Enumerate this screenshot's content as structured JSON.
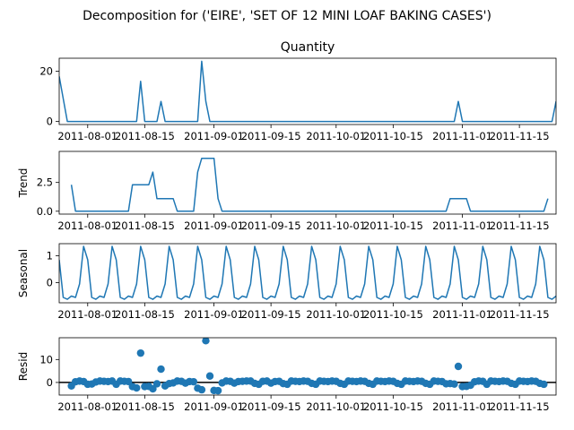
{
  "figure": {
    "suptitle": "Decomposition for ('EIRE', 'SET OF 12 MINI LOAF BAKING CASES')"
  },
  "colors": {
    "line": "#1f77b4",
    "axis": "#000000",
    "zero_line": "#000000"
  },
  "chart_data": [
    {
      "type": "line",
      "title": "Quantity",
      "ylabel": "",
      "ylim": [
        -1.2,
        25.2
      ],
      "yticks": [
        0,
        20
      ],
      "ytick_labels": [
        "0",
        "20"
      ],
      "xlim": [
        "2011-07-25",
        "2011-11-24"
      ],
      "xticks": [
        "2011-08-01",
        "2011-08-15",
        "2011-09-01",
        "2011-09-15",
        "2011-10-01",
        "2011-10-15",
        "2011-11-01",
        "2011-11-15"
      ],
      "xtick_labels": [
        "2011-08-01",
        "2011-08-15",
        "2011-09-01",
        "2011-09-15",
        "2011-10-01",
        "2011-10-15",
        "2011-11-01",
        "2011-11-15"
      ],
      "series": [
        {
          "points": [
            [
              "2011-07-25",
              18
            ],
            [
              "2011-07-27",
              0
            ],
            [
              "2011-08-13",
              0
            ],
            [
              "2011-08-14",
              16
            ],
            [
              "2011-08-15",
              0
            ],
            [
              "2011-08-18",
              0
            ],
            [
              "2011-08-19",
              8
            ],
            [
              "2011-08-20",
              0
            ],
            [
              "2011-08-28",
              0
            ],
            [
              "2011-08-29",
              24
            ],
            [
              "2011-08-30",
              8
            ],
            [
              "2011-08-31",
              0
            ],
            [
              "2011-10-30",
              0
            ],
            [
              "2011-10-31",
              8
            ],
            [
              "2011-11-01",
              0
            ],
            [
              "2011-11-23",
              0
            ],
            [
              "2011-11-24",
              8
            ]
          ]
        }
      ]
    },
    {
      "type": "line",
      "title": "",
      "ylabel": "Trend",
      "ylim": [
        -0.25,
        5.2
      ],
      "yticks": [
        0,
        2.5
      ],
      "ytick_labels": [
        "0.0",
        "2.5"
      ],
      "xlim": [
        "2011-07-25",
        "2011-11-24"
      ],
      "xticks": [
        "2011-08-01",
        "2011-08-15",
        "2011-09-01",
        "2011-09-15",
        "2011-10-01",
        "2011-10-15",
        "2011-11-01",
        "2011-11-15"
      ],
      "xtick_labels": [
        "2011-08-01",
        "2011-08-15",
        "2011-09-01",
        "2011-09-15",
        "2011-10-01",
        "2011-10-15",
        "2011-11-01",
        "2011-11-15"
      ],
      "series": [
        {
          "points": [
            [
              "2011-07-28",
              2.3
            ],
            [
              "2011-07-29",
              0
            ],
            [
              "2011-08-11",
              0
            ],
            [
              "2011-08-12",
              2.3
            ],
            [
              "2011-08-16",
              2.3
            ],
            [
              "2011-08-17",
              3.4
            ],
            [
              "2011-08-18",
              1.1
            ],
            [
              "2011-08-22",
              1.1
            ],
            [
              "2011-08-23",
              0
            ],
            [
              "2011-08-27",
              0
            ],
            [
              "2011-08-28",
              3.4
            ],
            [
              "2011-08-29",
              4.6
            ],
            [
              "2011-09-01",
              4.6
            ],
            [
              "2011-09-02",
              1.1
            ],
            [
              "2011-09-03",
              0
            ],
            [
              "2011-10-28",
              0
            ],
            [
              "2011-10-29",
              1.1
            ],
            [
              "2011-11-02",
              1.1
            ],
            [
              "2011-11-03",
              0
            ],
            [
              "2011-11-21",
              0
            ],
            [
              "2011-11-22",
              1.1
            ]
          ]
        }
      ]
    },
    {
      "type": "line",
      "title": "",
      "ylabel": "Seasonal",
      "ylim": [
        -0.75,
        1.45
      ],
      "yticks": [
        0,
        1
      ],
      "ytick_labels": [
        "0",
        "1"
      ],
      "xlim": [
        "2011-07-25",
        "2011-11-24"
      ],
      "xticks": [
        "2011-08-01",
        "2011-08-15",
        "2011-09-01",
        "2011-09-15",
        "2011-10-01",
        "2011-10-15",
        "2011-11-01",
        "2011-11-15"
      ],
      "xtick_labels": [
        "2011-08-01",
        "2011-08-15",
        "2011-09-01",
        "2011-09-15",
        "2011-10-01",
        "2011-10-15",
        "2011-11-01",
        "2011-11-15"
      ],
      "period_days": 7,
      "start_date": "2011-07-25",
      "seasonal_cycle": [
        0.85,
        -0.55,
        -0.62,
        -0.5,
        -0.55,
        -0.05,
        1.35
      ]
    },
    {
      "type": "scatter",
      "title": "",
      "ylabel": "Resid",
      "ylim": [
        -5.5,
        19.5
      ],
      "yticks": [
        0,
        10
      ],
      "ytick_labels": [
        "0",
        "10"
      ],
      "xlim": [
        "2011-07-25",
        "2011-11-24"
      ],
      "xticks": [
        "2011-08-01",
        "2011-08-15",
        "2011-09-01",
        "2011-09-15",
        "2011-10-01",
        "2011-10-15",
        "2011-11-01",
        "2011-11-15"
      ],
      "xtick_labels": [
        "2011-08-01",
        "2011-08-15",
        "2011-09-01",
        "2011-09-15",
        "2011-10-01",
        "2011-10-15",
        "2011-11-01",
        "2011-11-15"
      ],
      "zero_line": 0,
      "points": [
        [
          "2011-07-28",
          -1.5
        ],
        [
          "2011-07-29",
          0.3
        ],
        [
          "2011-07-30",
          0.6
        ],
        [
          "2011-07-31",
          0.4
        ],
        [
          "2011-08-01",
          -0.8
        ],
        [
          "2011-08-02",
          -0.7
        ],
        [
          "2011-08-03",
          0.2
        ],
        [
          "2011-08-04",
          0.6
        ],
        [
          "2011-08-05",
          0.5
        ],
        [
          "2011-08-06",
          0.4
        ],
        [
          "2011-08-07",
          0.6
        ],
        [
          "2011-08-08",
          -0.8
        ],
        [
          "2011-08-09",
          0.6
        ],
        [
          "2011-08-10",
          0.5
        ],
        [
          "2011-08-11",
          0.4
        ],
        [
          "2011-08-12",
          -1.8
        ],
        [
          "2011-08-13",
          -2.4
        ],
        [
          "2011-08-14",
          12.8
        ],
        [
          "2011-08-15",
          -1.8
        ],
        [
          "2011-08-16",
          -1.7
        ],
        [
          "2011-08-17",
          -2.8
        ],
        [
          "2011-08-18",
          -0.6
        ],
        [
          "2011-08-19",
          5.8
        ],
        [
          "2011-08-20",
          -1.5
        ],
        [
          "2011-08-21",
          -0.5
        ],
        [
          "2011-08-22",
          -0.2
        ],
        [
          "2011-08-23",
          0.6
        ],
        [
          "2011-08-24",
          0.5
        ],
        [
          "2011-08-25",
          -0.3
        ],
        [
          "2011-08-26",
          0.4
        ],
        [
          "2011-08-27",
          0.3
        ],
        [
          "2011-08-28",
          -2.5
        ],
        [
          "2011-08-29",
          -3.2
        ],
        [
          "2011-08-30",
          18.2
        ],
        [
          "2011-08-31",
          2.8
        ],
        [
          "2011-09-01",
          -3.5
        ],
        [
          "2011-09-02",
          -3.6
        ],
        [
          "2011-09-03",
          -0.2
        ],
        [
          "2011-09-04",
          0.6
        ],
        [
          "2011-09-05",
          0.5
        ],
        [
          "2011-09-06",
          -0.3
        ],
        [
          "2011-09-07",
          0.4
        ],
        [
          "2011-09-08",
          0.5
        ],
        [
          "2011-09-09",
          0.6
        ],
        [
          "2011-09-10",
          0.6
        ],
        [
          "2011-09-11",
          -0.4
        ],
        [
          "2011-09-12",
          -0.8
        ],
        [
          "2011-09-13",
          0.5
        ],
        [
          "2011-09-14",
          0.6
        ],
        [
          "2011-09-15",
          -0.3
        ],
        [
          "2011-09-16",
          0.4
        ],
        [
          "2011-09-17",
          0.5
        ],
        [
          "2011-09-18",
          -0.5
        ],
        [
          "2011-09-19",
          -0.8
        ],
        [
          "2011-09-20",
          0.6
        ],
        [
          "2011-09-21",
          0.5
        ],
        [
          "2011-09-22",
          0.4
        ],
        [
          "2011-09-23",
          0.6
        ],
        [
          "2011-09-24",
          0.5
        ],
        [
          "2011-09-25",
          -0.4
        ],
        [
          "2011-09-26",
          -0.8
        ],
        [
          "2011-09-27",
          0.6
        ],
        [
          "2011-09-28",
          0.5
        ],
        [
          "2011-09-29",
          0.4
        ],
        [
          "2011-09-30",
          0.6
        ],
        [
          "2011-10-01",
          0.5
        ],
        [
          "2011-10-02",
          -0.4
        ],
        [
          "2011-10-03",
          -0.8
        ],
        [
          "2011-10-04",
          0.6
        ],
        [
          "2011-10-05",
          0.5
        ],
        [
          "2011-10-06",
          0.4
        ],
        [
          "2011-10-07",
          0.6
        ],
        [
          "2011-10-08",
          0.5
        ],
        [
          "2011-10-09",
          -0.4
        ],
        [
          "2011-10-10",
          -0.8
        ],
        [
          "2011-10-11",
          0.6
        ],
        [
          "2011-10-12",
          0.5
        ],
        [
          "2011-10-13",
          0.4
        ],
        [
          "2011-10-14",
          0.6
        ],
        [
          "2011-10-15",
          0.5
        ],
        [
          "2011-10-16",
          -0.4
        ],
        [
          "2011-10-17",
          -0.8
        ],
        [
          "2011-10-18",
          0.6
        ],
        [
          "2011-10-19",
          0.5
        ],
        [
          "2011-10-20",
          0.4
        ],
        [
          "2011-10-21",
          0.6
        ],
        [
          "2011-10-22",
          0.5
        ],
        [
          "2011-10-23",
          -0.4
        ],
        [
          "2011-10-24",
          -0.8
        ],
        [
          "2011-10-25",
          0.6
        ],
        [
          "2011-10-26",
          0.5
        ],
        [
          "2011-10-27",
          0.4
        ],
        [
          "2011-10-28",
          -0.6
        ],
        [
          "2011-10-29",
          -0.5
        ],
        [
          "2011-10-30",
          -0.7
        ],
        [
          "2011-10-31",
          7.0
        ],
        [
          "2011-11-01",
          -1.8
        ],
        [
          "2011-11-02",
          -1.7
        ],
        [
          "2011-11-03",
          -1.2
        ],
        [
          "2011-11-04",
          0.3
        ],
        [
          "2011-11-05",
          0.6
        ],
        [
          "2011-11-06",
          0.5
        ],
        [
          "2011-11-07",
          -0.8
        ],
        [
          "2011-11-08",
          0.6
        ],
        [
          "2011-11-09",
          0.5
        ],
        [
          "2011-11-10",
          0.4
        ],
        [
          "2011-11-11",
          0.6
        ],
        [
          "2011-11-12",
          0.5
        ],
        [
          "2011-11-13",
          -0.4
        ],
        [
          "2011-11-14",
          -0.8
        ],
        [
          "2011-11-15",
          0.6
        ],
        [
          "2011-11-16",
          0.5
        ],
        [
          "2011-11-17",
          0.4
        ],
        [
          "2011-11-18",
          0.6
        ],
        [
          "2011-11-19",
          0.5
        ],
        [
          "2011-11-20",
          -0.4
        ],
        [
          "2011-11-21",
          -0.8
        ]
      ]
    }
  ]
}
